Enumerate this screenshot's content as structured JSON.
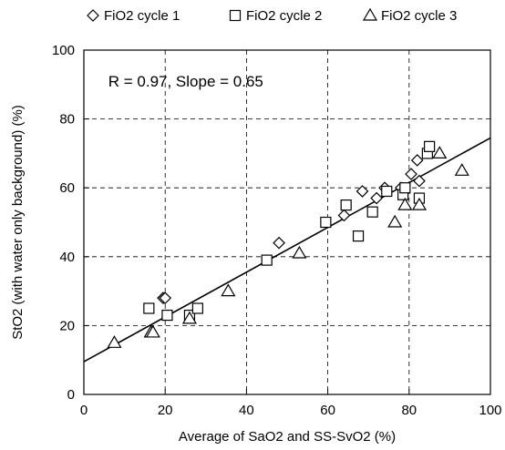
{
  "chart_data": {
    "type": "scatter",
    "title": "",
    "xlabel": "Average of SaO2 and SS-SvO2 (%)",
    "ylabel": "StO2 (with water only background) (%)",
    "xlim": [
      0,
      100
    ],
    "ylim": [
      0,
      100
    ],
    "x_ticks": [
      0,
      20,
      40,
      60,
      80,
      100
    ],
    "y_ticks": [
      0,
      20,
      40,
      60,
      80,
      100
    ],
    "grid": "dashed horizontal and vertical",
    "legend_position": "top",
    "annotation": "R = 0.97,  Slope = 0.65",
    "regression_line": {
      "intercept": 9.5,
      "slope": 0.65
    },
    "series": [
      {
        "name": "FiO2 cycle 1",
        "marker": "diamond",
        "points": [
          [
            19.5,
            28
          ],
          [
            20,
            28
          ],
          [
            48,
            44
          ],
          [
            64,
            52
          ],
          [
            68.5,
            59
          ],
          [
            72,
            57
          ],
          [
            74,
            60
          ],
          [
            78,
            60
          ],
          [
            80.5,
            64
          ],
          [
            82,
            68
          ],
          [
            82.5,
            62
          ]
        ]
      },
      {
        "name": "FiO2 cycle 2",
        "marker": "square",
        "points": [
          [
            16,
            25
          ],
          [
            20.5,
            23
          ],
          [
            26,
            23
          ],
          [
            28,
            25
          ],
          [
            45,
            39
          ],
          [
            59.5,
            50
          ],
          [
            64.5,
            55
          ],
          [
            67.5,
            46
          ],
          [
            71,
            53
          ],
          [
            74.5,
            59
          ],
          [
            78.5,
            58
          ],
          [
            79,
            60
          ],
          [
            82.5,
            57
          ],
          [
            84.5,
            70
          ],
          [
            85,
            72
          ]
        ]
      },
      {
        "name": "FiO2 cycle 3",
        "marker": "triangle",
        "points": [
          [
            7.5,
            15
          ],
          [
            16.5,
            18
          ],
          [
            17,
            18
          ],
          [
            26,
            22
          ],
          [
            35.5,
            30
          ],
          [
            53,
            41
          ],
          [
            76.5,
            50
          ],
          [
            79,
            55
          ],
          [
            82.5,
            55
          ],
          [
            87.5,
            70
          ],
          [
            93,
            65
          ]
        ]
      }
    ]
  }
}
